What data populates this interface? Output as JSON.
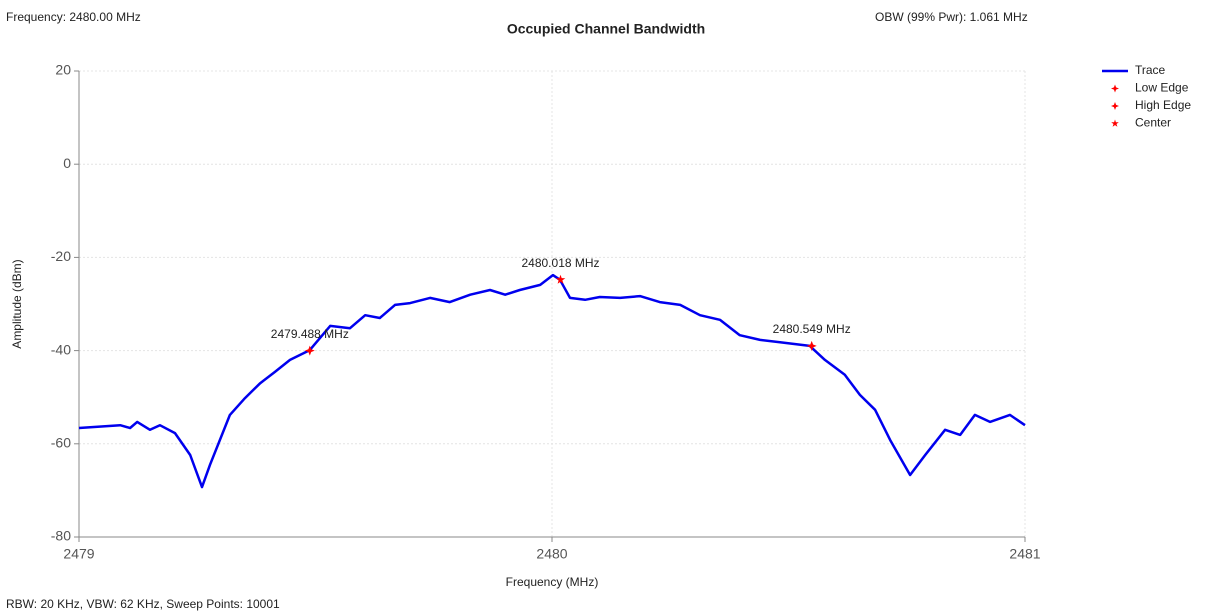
{
  "chart_data": {
    "type": "line",
    "title": "Occupied Channel Bandwidth",
    "top_left": "Frequency: 2480.00 MHz",
    "top_right": "OBW (99% Pwr): 1.061 MHz",
    "footer": "RBW: 20 KHz,  VBW: 62 KHz,  Sweep Points: 10001",
    "xlabel": "Frequency (MHz)",
    "ylabel": "Amplitude (dBm)",
    "xlim": [
      2479,
      2481
    ],
    "xticks": [
      2479,
      2480,
      2481
    ],
    "ylim": [
      -80,
      20
    ],
    "yticks": [
      -80,
      -60,
      -40,
      -20,
      0,
      20
    ],
    "grid": true,
    "legend": "right",
    "series": [
      {
        "name": "Trace",
        "color": "#0000ee",
        "x": [
          2479.0,
          2479.087,
          2479.108,
          2479.123,
          2479.15,
          2479.171,
          2479.203,
          2479.235,
          2479.26,
          2479.277,
          2479.319,
          2479.351,
          2479.383,
          2479.414,
          2479.446,
          2479.488,
          2479.531,
          2479.573,
          2479.605,
          2479.636,
          2479.668,
          2479.7,
          2479.742,
          2479.784,
          2479.827,
          2479.869,
          2479.901,
          2479.932,
          2479.975,
          2480.002,
          2480.017,
          2480.038,
          2480.07,
          2480.101,
          2480.144,
          2480.186,
          2480.228,
          2480.271,
          2480.313,
          2480.355,
          2480.397,
          2480.44,
          2480.482,
          2480.545,
          2480.577,
          2480.619,
          2480.651,
          2480.683,
          2480.715,
          2480.757,
          2480.789,
          2480.831,
          2480.863,
          2480.894,
          2480.926,
          2480.968,
          2481.0
        ],
        "values": [
          -56.6,
          -56,
          -56.6,
          -55.3,
          -57,
          -56,
          -57.7,
          -62.4,
          -69.3,
          -64.5,
          -53.8,
          -50.2,
          -47,
          -44.6,
          -42,
          -39.9,
          -34.7,
          -35.2,
          -32.4,
          -33,
          -30.2,
          -29.8,
          -28.7,
          -29.6,
          -28,
          -27,
          -28,
          -27,
          -25.9,
          -23.8,
          -24.8,
          -28.7,
          -29.1,
          -28.5,
          -28.7,
          -28.3,
          -29.6,
          -30.2,
          -32.4,
          -33.4,
          -36.7,
          -37.7,
          -38.2,
          -39,
          -42,
          -45.2,
          -49.5,
          -52.7,
          -59.2,
          -66.7,
          -62.4,
          -57,
          -58.1,
          -53.8,
          -55.3,
          -53.8,
          -56
        ]
      }
    ],
    "markers": [
      {
        "name": "Low Edge",
        "color": "#ff0000",
        "x": 2479.488,
        "y": -40,
        "label": "2479.488 MHz"
      },
      {
        "name": "High Edge",
        "color": "#ff0000",
        "x": 2480.549,
        "y": -39,
        "label": "2480.549 MHz"
      },
      {
        "name": "Center",
        "color": "#ff0000",
        "x": 2480.018,
        "y": -24.8,
        "label": "2480.018 MHz"
      }
    ]
  }
}
